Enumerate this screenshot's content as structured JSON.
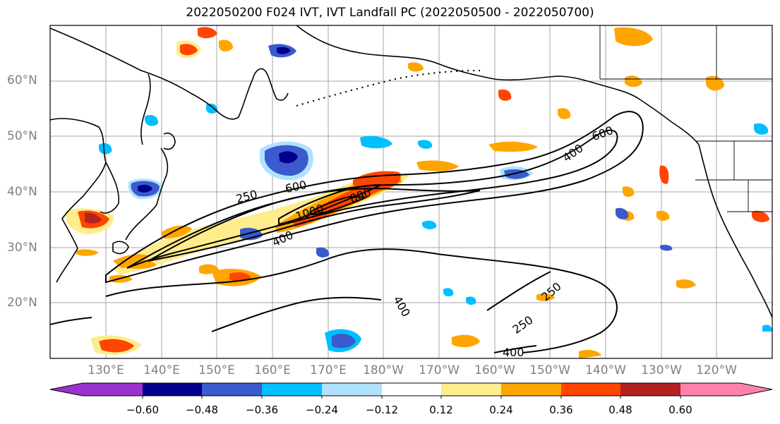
{
  "title": "2022050200 F024 IVT, IVT Landfall PC (2022050500 - 2022050700)",
  "lat_labels": [
    "60°N",
    "50°N",
    "40°N",
    "30°N",
    "20°N"
  ],
  "lon_labels": [
    "130°E",
    "140°E",
    "150°E",
    "160°E",
    "170°E",
    "180°W",
    "170°W",
    "160°W",
    "150°W",
    "140°W",
    "130°W",
    "120°W"
  ],
  "contour_labels": [
    "250",
    "600",
    "1000",
    "800",
    "400",
    "600",
    "400",
    "400",
    "250",
    "250",
    "400"
  ],
  "colorbar": {
    "ticks": [
      "−0.60",
      "−0.48",
      "−0.36",
      "−0.24",
      "−0.12",
      "0.12",
      "0.24",
      "0.36",
      "0.48",
      "0.60"
    ],
    "colors": [
      "#9a32cd",
      "#00008b",
      "#3a5acd",
      "#00bfff",
      "#b0e2ff",
      "#ffffff",
      "#ffec8b",
      "#ffa500",
      "#ff4500",
      "#b22222",
      "#ff82ab"
    ]
  }
}
